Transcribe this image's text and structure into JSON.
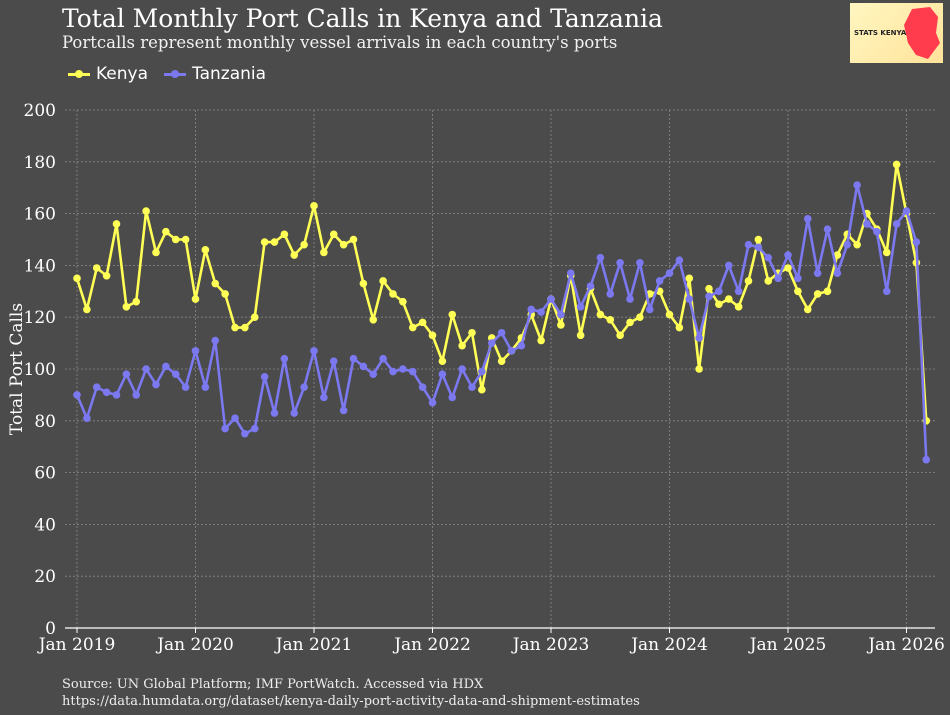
{
  "title": "Total Monthly Port Calls in Kenya and Tanzania",
  "subtitle": "Portcalls represent monthly vessel arrivals in each country's ports",
  "logo_text": "STATS KENYA",
  "source_line1": "Source: UN Global Platform; IMF PortWatch. Accessed via HDX",
  "source_line2": "https://data.humdata.org/dataset/kenya-daily-port-activity-data-and-shipment-estimates",
  "chart_data": {
    "type": "line",
    "title": "Total Monthly Port Calls in Kenya and Tanzania",
    "ylabel": "Total Port Calls",
    "xlabel": "",
    "ylim": [
      0,
      200
    ],
    "yticks": [
      0,
      20,
      40,
      60,
      80,
      100,
      120,
      140,
      160,
      180,
      200
    ],
    "xticks": [
      "Jan 2019",
      "Jan 2020",
      "Jan 2021",
      "Jan 2022",
      "Jan 2023",
      "Jan 2024",
      "Jan 2025",
      "Jan 2026"
    ],
    "x_start": "2019-01",
    "x_end": "2026-03",
    "x_frequency": "monthly",
    "grid": true,
    "legend_position": "top-left",
    "series": [
      {
        "name": "Kenya",
        "color": "#ffff55",
        "values": [
          135,
          123,
          139,
          136,
          156,
          124,
          126,
          161,
          145,
          153,
          150,
          150,
          127,
          146,
          133,
          129,
          116,
          116,
          120,
          149,
          149,
          152,
          144,
          148,
          163,
          145,
          152,
          148,
          150,
          133,
          119,
          134,
          129,
          126,
          116,
          118,
          113,
          103,
          121,
          109,
          114,
          92,
          112,
          103,
          107,
          112,
          121,
          111,
          127,
          117,
          136,
          113,
          131,
          121,
          119,
          113,
          118,
          120,
          129,
          130,
          121,
          116,
          135,
          100,
          131,
          125,
          127,
          124,
          134,
          150,
          134,
          137,
          139,
          130,
          123,
          129,
          130,
          144,
          152,
          148,
          160,
          154,
          145,
          179,
          160,
          141,
          80
        ]
      },
      {
        "name": "Tanzania",
        "color": "#7b78f0",
        "values": [
          90,
          81,
          93,
          91,
          90,
          98,
          90,
          100,
          94,
          101,
          98,
          93,
          107,
          93,
          111,
          77,
          81,
          75,
          77,
          97,
          83,
          104,
          83,
          93,
          107,
          89,
          103,
          84,
          104,
          101,
          98,
          104,
          99,
          100,
          99,
          93,
          87,
          98,
          89,
          100,
          93,
          99,
          110,
          114,
          107,
          109,
          123,
          122,
          127,
          121,
          137,
          124,
          132,
          143,
          129,
          141,
          127,
          141,
          123,
          134,
          137,
          142,
          127,
          112,
          128,
          130,
          140,
          130,
          148,
          147,
          143,
          135,
          144,
          135,
          158,
          137,
          154,
          137,
          148,
          171,
          156,
          153,
          130,
          156,
          161,
          149,
          65
        ]
      }
    ]
  }
}
